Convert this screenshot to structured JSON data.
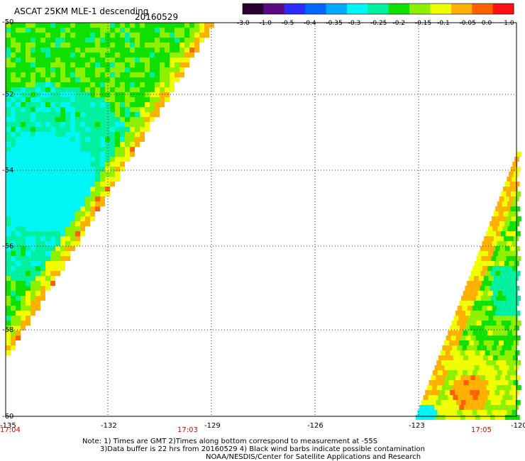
{
  "header": {
    "title": "ASCAT 25KM MLE-1 descending",
    "date": "20160529"
  },
  "colorbar": {
    "tick_labels": [
      "-3.0",
      "-1.0",
      "-0.5",
      "-0.4",
      "-0.35",
      "-0.3",
      "-0.25",
      "-0.2",
      "-0.15",
      "-0.1",
      "-0.05",
      "0.0",
      "1.0"
    ],
    "colors": [
      "#2a0030",
      "#5b0a82",
      "#2b2bff",
      "#0066ff",
      "#00a8ff",
      "#00f5f5",
      "#00f0a0",
      "#10e000",
      "#8cf000",
      "#f0ff00",
      "#ffb000",
      "#ff6000",
      "#ff1010"
    ]
  },
  "map": {
    "lat_labels": [
      "-50",
      "-52",
      "-54",
      "-56",
      "-58",
      "-60"
    ],
    "lon_labels": [
      "-135",
      "-132",
      "-129",
      "-126",
      "-123",
      "-120"
    ],
    "time_labels": [
      "17:04",
      "17:03",
      "17:05"
    ],
    "time_color": "#cc1100",
    "swaths": [
      {
        "name": "west-swath",
        "dominant_colors": [
          "#00f5f5",
          "#00f0a0",
          "#10e000",
          "#8cf000",
          "#f0ff00",
          "#ffb000"
        ]
      },
      {
        "name": "east-swath",
        "dominant_colors": [
          "#10e000",
          "#8cf000",
          "#f0ff00",
          "#ffb000",
          "#ff6000",
          "#00f0a0"
        ]
      }
    ]
  },
  "notes": {
    "line1": "Note: 1) Times are GMT 2)Times along bottom correspond to measurement at -55S",
    "line2": "3)Data buffer is 22 hrs from 20160529 4) Black wind barbs indicate possible contamination",
    "line3": "NOAA/NESDIS/Center for Satellite Applications and Research"
  }
}
